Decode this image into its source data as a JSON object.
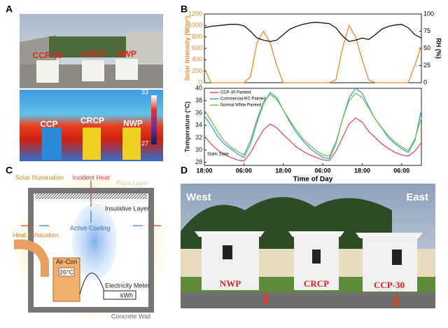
{
  "panel_labels": [
    "A",
    "B",
    "C",
    "D"
  ],
  "photo_a": {
    "labels": [
      "CCP-30",
      "CRCP",
      "NWP"
    ],
    "thermal_labels": [
      "CCP",
      "CRCP",
      "NWP"
    ],
    "colorbar": [
      33,
      27
    ]
  },
  "chart_data": [
    {
      "type": "line",
      "ylabel": "Solar Intensity (W/m²)",
      "y2label": "RH (%)",
      "x": [
        0,
        2,
        4,
        6,
        8,
        10,
        12,
        14,
        16,
        18,
        20,
        22,
        24,
        26,
        28,
        30,
        32,
        34,
        36,
        38,
        40,
        42,
        44,
        46,
        48,
        50,
        52,
        54,
        56,
        58,
        60,
        62,
        64,
        66
      ],
      "xlim": [
        0,
        66
      ],
      "ylim": [
        0,
        1200
      ],
      "yticks": [
        0,
        200,
        400,
        600,
        800,
        1000,
        1200
      ],
      "y2lim": [
        0,
        100
      ],
      "y2ticks": [
        0,
        25,
        50,
        75,
        100
      ],
      "series": [
        {
          "name": "Solar Intensity",
          "color": "#ee8a2a",
          "values": [
            250,
            0,
            0,
            0,
            0,
            0,
            0,
            100,
            700,
            900,
            700,
            300,
            0,
            0,
            0,
            0,
            0,
            0,
            0,
            0,
            50,
            600,
            1000,
            800,
            400,
            50,
            0,
            0,
            0,
            0,
            0,
            0,
            300,
            650
          ]
        },
        {
          "name": "RH",
          "color": "#111111",
          "axis": "y2",
          "values": [
            80,
            82,
            83,
            84,
            85,
            85,
            83,
            75,
            65,
            62,
            60,
            62,
            70,
            78,
            82,
            85,
            87,
            88,
            87,
            86,
            80,
            68,
            60,
            62,
            65,
            63,
            70,
            78,
            82,
            84,
            85,
            80,
            70,
            65
          ]
        }
      ]
    },
    {
      "type": "line",
      "ylabel": "Temperature (°C)",
      "xlabel": "Time of Day",
      "annotation": "Static State",
      "legend": "upper left",
      "x": [
        0,
        2,
        4,
        6,
        8,
        10,
        12,
        14,
        16,
        18,
        20,
        22,
        24,
        26,
        28,
        30,
        32,
        34,
        36,
        38,
        40,
        42,
        44,
        46,
        48,
        50,
        52,
        54,
        56,
        58,
        60,
        62,
        64,
        66
      ],
      "xlim": [
        0,
        66
      ],
      "ylim": [
        27.5,
        40
      ],
      "yticks": [
        28,
        30,
        32,
        34,
        36,
        38,
        40
      ],
      "xticks": [
        {
          "value": 0,
          "label": "18:00"
        },
        {
          "value": 12,
          "label": "06:00"
        },
        {
          "value": 24,
          "label": "18:00"
        },
        {
          "value": 36,
          "label": "06:00"
        },
        {
          "value": 48,
          "label": "18:00"
        },
        {
          "value": 60,
          "label": "06:00"
        }
      ],
      "series": [
        {
          "name": "CCP-30 Painted",
          "color": "#e0525e",
          "values": [
            32.2,
            31,
            30,
            29.3,
            28.8,
            28.4,
            28.2,
            29.5,
            31.5,
            33.3,
            34.2,
            33.6,
            32.5,
            31.5,
            30.5,
            29.8,
            29.2,
            28.8,
            28.4,
            28.3,
            29.8,
            32,
            34.2,
            35.2,
            34.5,
            33,
            32,
            31,
            30.2,
            29.6,
            29.2,
            29,
            29.8,
            31.2
          ]
        },
        {
          "name": "Commercial-RC Painted",
          "color": "#3aa0e0",
          "values": [
            35.5,
            34,
            32.2,
            31,
            30.2,
            29.4,
            28.8,
            31,
            34.5,
            37.5,
            39.3,
            38.5,
            36.5,
            34.5,
            32.8,
            31.5,
            30.3,
            29.5,
            28.8,
            28.6,
            31,
            35,
            38.5,
            40,
            39.2,
            37,
            35,
            33.5,
            32,
            31,
            30.2,
            29.6,
            31.5,
            36.5
          ]
        },
        {
          "name": "Normal White Painted",
          "color": "#7cc242",
          "values": [
            36.5,
            34.8,
            33,
            31.5,
            30.5,
            29.8,
            29.2,
            31.5,
            35,
            37.8,
            39,
            38.2,
            36.5,
            34.8,
            33.2,
            31.8,
            30.8,
            29.9,
            29.2,
            29,
            31.3,
            35,
            38,
            39.2,
            38.5,
            36.8,
            35,
            33.6,
            32.3,
            31.3,
            30.5,
            29.9,
            31.8,
            35.2
          ]
        }
      ]
    }
  ],
  "diagram_c": {
    "solar": "Solar Illumination",
    "incident": "Incident Heat",
    "paint": "Paint Layer",
    "insulative": "Insulative Layer",
    "cooling": "Active Cooling",
    "exhaust": "Heat Exhaustion",
    "aircon": "Air-Con",
    "setpoint": "26°C",
    "meter": "Electricity Meter",
    "unit": "kWh",
    "wall": "Concrete Wall"
  },
  "photo_d": {
    "west": "West",
    "east": "East",
    "labels": [
      "NWP",
      "CRCP",
      "CCP-30"
    ]
  }
}
